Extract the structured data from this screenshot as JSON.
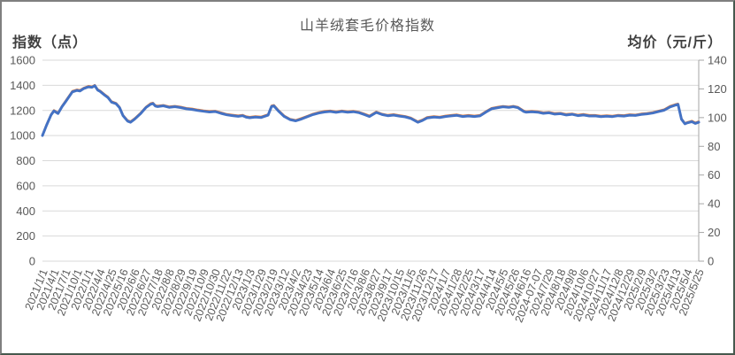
{
  "frame": {
    "background": "#ffffff",
    "border_light": "#7f7f7f",
    "border_dark": "#46584d"
  },
  "chart_data": {
    "type": "line",
    "title": "山羊绒套毛价格指数",
    "legend": "none",
    "grid": true,
    "left_axis": {
      "title": "指数（点）",
      "min": 0,
      "max": 1600,
      "step": 200,
      "ticks": [
        "0",
        "200",
        "400",
        "600",
        "800",
        "1000",
        "1200",
        "1400",
        "1600"
      ]
    },
    "right_axis": {
      "title": "均价（元/斤）",
      "min": 0,
      "max": 140,
      "step": 20,
      "ticks": [
        "0",
        "20",
        "40",
        "60",
        "80",
        "100",
        "120",
        "140"
      ]
    },
    "categories": [
      "2021/1/1",
      "2021/4/1",
      "2021/7/1",
      "2021/10/1",
      "2022/1/1",
      "2022/4/4",
      "2022/4/25",
      "2022/5/16",
      "2022/6/6",
      "2022/6/27",
      "2022/7/18",
      "2022/8/8",
      "2022/8/29",
      "2022/9/19",
      "2022/10/9",
      "2022/10/30",
      "2022/11/22",
      "2022/12/13",
      "2023/1/3",
      "2023/1/29",
      "2023/2/19",
      "2023/3/12",
      "2023/4/2",
      "2023/4/23",
      "2023/5/14",
      "2023/6/4",
      "2023/6/25",
      "2023/7/16",
      "2023/8/6",
      "2023/8/27",
      "2023/9/17",
      "2023/10/15",
      "2023/11/5",
      "2023/11/26",
      "2023/12/17",
      "2024/1/7",
      "2024/1/28",
      "2024/2/25",
      "2024/3/17",
      "2024/4/14",
      "2024/5/5",
      "2024/5/26",
      "2024/6/16",
      "2024-07-07",
      "2024/7/29",
      "2024/8/18",
      "2024/9/8",
      "2024/10/6",
      "2024/10/27",
      "2024/11/17",
      "2024/12/8",
      "2024/12/29",
      "2025/2/9",
      "2025/3/2",
      "2025/3/23",
      "2025/4/13",
      "2025/5/4",
      "2025/5/25"
    ],
    "x": [
      0,
      0.35,
      0.75,
      1,
      1.35,
      1.7,
      2,
      2.6,
      3,
      3.25,
      3.6,
      4,
      4.3,
      4.55,
      4.8,
      5,
      5.4,
      5.7,
      6,
      6.4,
      6.7,
      7,
      7.4,
      7.65,
      8,
      8.5,
      9,
      9.4,
      9.6,
      9.8,
      10,
      10.5,
      11,
      11.5,
      12,
      12.5,
      13,
      13.5,
      14,
      14.5,
      15,
      15.5,
      16,
      16.5,
      17,
      17.4,
      17.7,
      18,
      18.5,
      19,
      19.6,
      19.9,
      20.1,
      20.5,
      21,
      21.5,
      22,
      22.5,
      23,
      23.5,
      24,
      24.5,
      25,
      25.5,
      26,
      26.5,
      27,
      27.5,
      28,
      28.4,
      29,
      29.5,
      30,
      30.5,
      31,
      31.5,
      32,
      32.6,
      33,
      33.4,
      34,
      34.5,
      35,
      35.5,
      36,
      36.5,
      37,
      37.5,
      38,
      38.5,
      39,
      39.6,
      40,
      40.5,
      40.9,
      41.3,
      41.8,
      42,
      42.5,
      43,
      43.5,
      44,
      44.5,
      45,
      45.5,
      46,
      46.5,
      47,
      47.5,
      48,
      48.5,
      49,
      49.5,
      50,
      50.5,
      51,
      51.5,
      52,
      52.5,
      53,
      53.5,
      54,
      54.5,
      55,
      55.2,
      55.5,
      55.8,
      56,
      56.4,
      56.7,
      57
    ],
    "series": [
      {
        "name": "价格指数",
        "axis": "left",
        "color": "#4472C4",
        "width": 3,
        "values": [
          1000,
          1082,
          1165,
          1196,
          1176,
          1230,
          1268,
          1348,
          1360,
          1355,
          1375,
          1388,
          1384,
          1397,
          1362,
          1352,
          1322,
          1302,
          1266,
          1253,
          1222,
          1158,
          1115,
          1106,
          1130,
          1172,
          1224,
          1250,
          1255,
          1235,
          1231,
          1237,
          1225,
          1230,
          1223,
          1213,
          1208,
          1200,
          1193,
          1188,
          1191,
          1177,
          1165,
          1159,
          1153,
          1158,
          1146,
          1142,
          1147,
          1144,
          1162,
          1232,
          1236,
          1195,
          1152,
          1127,
          1117,
          1132,
          1150,
          1167,
          1179,
          1188,
          1192,
          1185,
          1192,
          1186,
          1190,
          1182,
          1166,
          1152,
          1184,
          1167,
          1158,
          1163,
          1155,
          1149,
          1136,
          1106,
          1120,
          1140,
          1147,
          1143,
          1152,
          1157,
          1161,
          1152,
          1156,
          1152,
          1157,
          1186,
          1213,
          1223,
          1229,
          1224,
          1230,
          1222,
          1192,
          1186,
          1190,
          1186,
          1177,
          1181,
          1171,
          1174,
          1164,
          1169,
          1159,
          1164,
          1156,
          1157,
          1151,
          1154,
          1151,
          1158,
          1155,
          1162,
          1160,
          1168,
          1173,
          1179,
          1191,
          1202,
          1228,
          1243,
          1248,
          1130,
          1093,
          1101,
          1111,
          1097,
          1106
        ]
      },
      {
        "name": "均价",
        "axis": "right",
        "color": "#ED7D31",
        "width": 2,
        "values": [
          88.1,
          95.3,
          102.5,
          105.3,
          103.5,
          108.2,
          111.6,
          118.6,
          119.6,
          119.2,
          120.9,
          122.1,
          121.7,
          122.8,
          119.8,
          118.9,
          116.3,
          114.5,
          111.4,
          110.2,
          107.5,
          101.9,
          98.2,
          97.4,
          99.5,
          103.2,
          107.7,
          110.0,
          110.4,
          108.7,
          108.3,
          108.8,
          107.8,
          108.2,
          107.6,
          106.7,
          106.3,
          105.6,
          105.0,
          104.6,
          104.8,
          103.6,
          102.5,
          102.0,
          101.5,
          101.9,
          100.9,
          100.5,
          101.0,
          100.7,
          102.3,
          108.4,
          108.8,
          105.2,
          101.4,
          99.2,
          98.3,
          99.7,
          101.2,
          102.7,
          103.8,
          104.6,
          104.9,
          104.3,
          104.9,
          104.4,
          104.7,
          104.0,
          102.6,
          101.4,
          104.2,
          102.7,
          101.9,
          102.4,
          101.7,
          101.1,
          100.0,
          97.4,
          98.6,
          100.4,
          101.0,
          100.6,
          101.4,
          101.8,
          102.2,
          101.4,
          101.8,
          101.4,
          101.8,
          104.4,
          106.7,
          107.6,
          108.1,
          107.7,
          108.2,
          107.5,
          104.9,
          104.4,
          104.7,
          104.4,
          103.6,
          103.9,
          103.1,
          103.3,
          102.5,
          102.9,
          102.0,
          102.5,
          101.8,
          101.8,
          101.3,
          101.6,
          101.3,
          101.9,
          101.7,
          102.3,
          102.1,
          102.8,
          103.2,
          103.8,
          104.8,
          105.8,
          108.1,
          109.4,
          109.8,
          99.5,
          96.2,
          96.9,
          97.8,
          96.6,
          97.4
        ]
      }
    ],
    "styles": {
      "gridline": "#D9D9D9",
      "axis_line": "#A6A6A6",
      "title_color": "#595959",
      "tick_color": "#595959",
      "axis_title_color": "#3f3f3f"
    }
  }
}
